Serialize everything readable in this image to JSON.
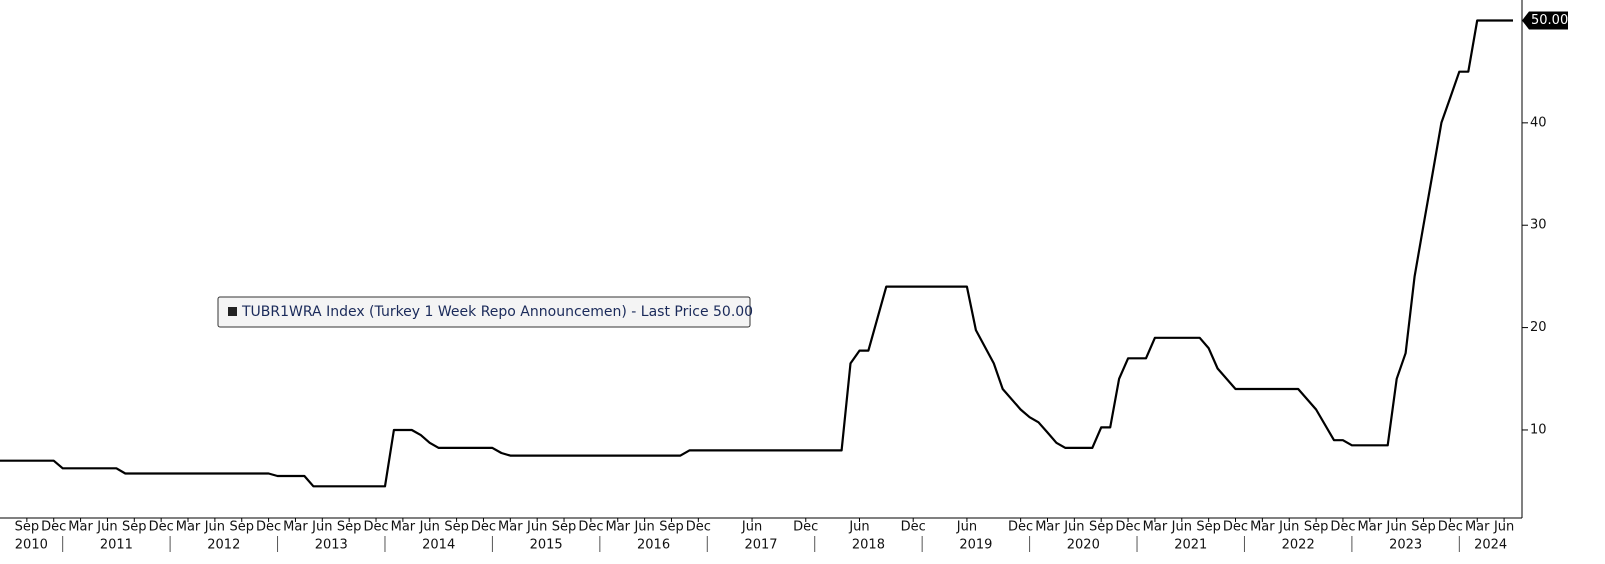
{
  "chart_data": {
    "type": "line",
    "series": [
      {
        "name": "TUBR1WRA Index (Turkey 1 Week Repo Announcemen) - Last Price 50.00",
        "color": "#000000",
        "x": [
          "2010-06",
          "2010-12",
          "2011-01",
          "2011-07",
          "2011-08",
          "2012-12",
          "2013-01",
          "2013-04",
          "2013-05",
          "2014-01",
          "2014-02",
          "2014-04",
          "2014-05",
          "2014-06",
          "2014-07",
          "2015-01",
          "2015-02",
          "2015-03",
          "2016-10",
          "2016-11",
          "2018-04",
          "2018-05",
          "2018-06",
          "2018-07",
          "2018-09",
          "2019-06",
          "2019-07",
          "2019-09",
          "2019-10",
          "2019-12",
          "2020-01",
          "2020-02",
          "2020-03",
          "2020-04",
          "2020-05",
          "2020-08",
          "2020-09",
          "2020-10",
          "2020-11",
          "2020-12",
          "2021-02",
          "2021-03",
          "2021-08",
          "2021-09",
          "2021-10",
          "2021-12",
          "2022-07",
          "2022-09",
          "2022-11",
          "2022-12",
          "2023-01",
          "2023-05",
          "2023-06",
          "2023-07",
          "2023-08",
          "2023-09",
          "2023-10",
          "2023-11",
          "2023-12",
          "2024-01",
          "2024-02",
          "2024-03",
          "2024-07"
        ],
        "values": [
          7,
          7,
          6.25,
          6.25,
          5.75,
          5.75,
          5.5,
          5.5,
          4.5,
          4.5,
          10,
          10,
          9.5,
          8.75,
          8.25,
          8.25,
          7.75,
          7.5,
          7.5,
          8,
          8,
          16.5,
          17.75,
          17.75,
          24,
          24,
          19.75,
          16.5,
          14,
          12,
          11.25,
          10.75,
          9.75,
          8.75,
          8.25,
          8.25,
          10.25,
          10.25,
          15,
          17,
          17,
          19,
          19,
          18,
          16,
          14,
          14,
          12,
          9,
          9,
          8.5,
          8.5,
          15,
          17.5,
          25,
          30,
          35,
          40,
          42.5,
          45,
          45,
          50,
          50
        ]
      }
    ],
    "last_price": {
      "value": 50,
      "label": "50.00"
    },
    "xlim": [
      "2010-06",
      "2024-08"
    ],
    "ylim": [
      1.4,
      52
    ],
    "yticks": [
      10,
      20,
      30,
      40
    ],
    "xticks": [
      {
        "value": "2010-09",
        "label": "Sep"
      },
      {
        "value": "2010-12",
        "label": "Dec"
      },
      {
        "value": "2011-03",
        "label": "Mar"
      },
      {
        "value": "2011-06",
        "label": "Jun"
      },
      {
        "value": "2011-09",
        "label": "Sep"
      },
      {
        "value": "2011-12",
        "label": "Dec"
      },
      {
        "value": "2012-03",
        "label": "Mar"
      },
      {
        "value": "2012-06",
        "label": "Jun"
      },
      {
        "value": "2012-09",
        "label": "Sep"
      },
      {
        "value": "2012-12",
        "label": "Dec"
      },
      {
        "value": "2013-03",
        "label": "Mar"
      },
      {
        "value": "2013-06",
        "label": "Jun"
      },
      {
        "value": "2013-09",
        "label": "Sep"
      },
      {
        "value": "2013-12",
        "label": "Dec"
      },
      {
        "value": "2014-03",
        "label": "Mar"
      },
      {
        "value": "2014-06",
        "label": "Jun"
      },
      {
        "value": "2014-09",
        "label": "Sep"
      },
      {
        "value": "2014-12",
        "label": "Dec"
      },
      {
        "value": "2015-03",
        "label": "Mar"
      },
      {
        "value": "2015-06",
        "label": "Jun"
      },
      {
        "value": "2015-09",
        "label": "Sep"
      },
      {
        "value": "2015-12",
        "label": "Dec"
      },
      {
        "value": "2016-03",
        "label": "Mar"
      },
      {
        "value": "2016-06",
        "label": "Jun"
      },
      {
        "value": "2016-09",
        "label": "Sep"
      },
      {
        "value": "2016-12",
        "label": "Dec"
      },
      {
        "value": "2017-06",
        "label": "Jun"
      },
      {
        "value": "2017-12",
        "label": "Dec"
      },
      {
        "value": "2018-06",
        "label": "Jun"
      },
      {
        "value": "2018-12",
        "label": "Dec"
      },
      {
        "value": "2019-06",
        "label": "Jun"
      },
      {
        "value": "2019-12",
        "label": "Dec"
      },
      {
        "value": "2020-03",
        "label": "Mar"
      },
      {
        "value": "2020-06",
        "label": "Jun"
      },
      {
        "value": "2020-09",
        "label": "Sep"
      },
      {
        "value": "2020-12",
        "label": "Dec"
      },
      {
        "value": "2021-03",
        "label": "Mar"
      },
      {
        "value": "2021-06",
        "label": "Jun"
      },
      {
        "value": "2021-09",
        "label": "Sep"
      },
      {
        "value": "2021-12",
        "label": "Dec"
      },
      {
        "value": "2022-03",
        "label": "Mar"
      },
      {
        "value": "2022-06",
        "label": "Jun"
      },
      {
        "value": "2022-09",
        "label": "Sep"
      },
      {
        "value": "2022-12",
        "label": "Dec"
      },
      {
        "value": "2023-03",
        "label": "Mar"
      },
      {
        "value": "2023-06",
        "label": "Jun"
      },
      {
        "value": "2023-09",
        "label": "Sep"
      },
      {
        "value": "2023-12",
        "label": "Dec"
      },
      {
        "value": "2024-03",
        "label": "Mar"
      },
      {
        "value": "2024-06",
        "label": "Jun"
      }
    ],
    "years": [
      2010,
      2011,
      2012,
      2013,
      2014,
      2015,
      2016,
      2017,
      2018,
      2019,
      2020,
      2021,
      2022,
      2023,
      2024
    ]
  }
}
